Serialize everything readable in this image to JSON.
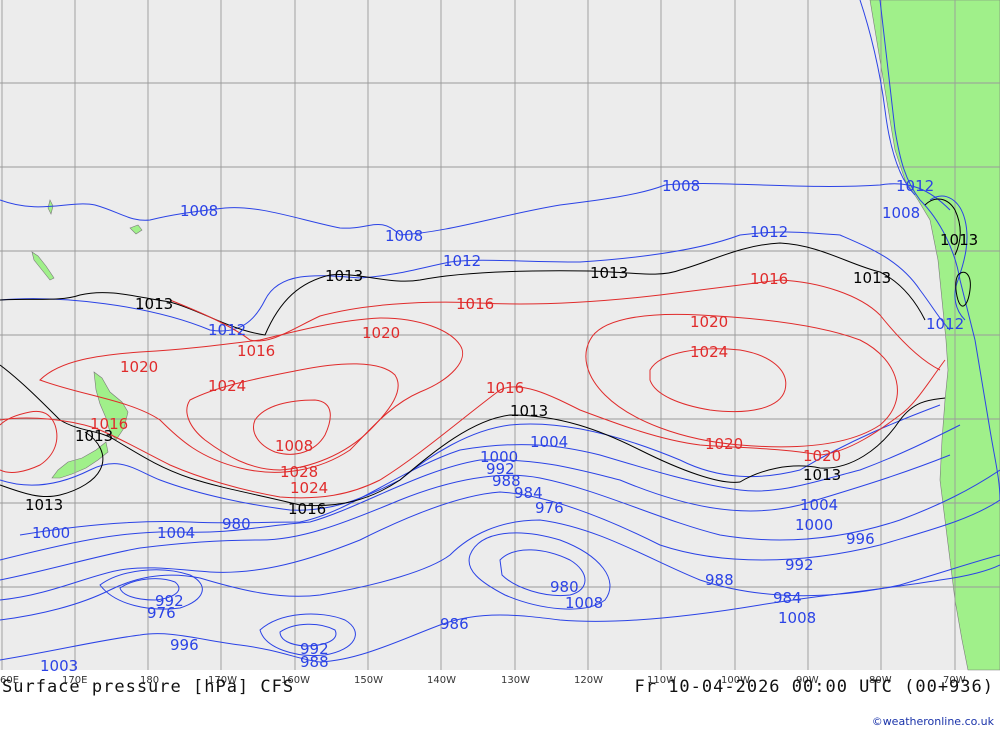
{
  "title_left": "Surface pressure [hPa] CFS",
  "title_right": "Fr 10-04-2026 00:00 UTC (00+936)",
  "credit": "©weatheronline.co.uk",
  "colors": {
    "ocean": "#ececec",
    "land": "#a0f08a",
    "grid": "#9a9a9a",
    "low": "#2b43e6",
    "high": "#e02b2b",
    "normal": "#000000"
  },
  "longitude_labels": [
    "60E",
    "170E",
    "180",
    "170W",
    "160W",
    "150W",
    "140W",
    "130W",
    "120W",
    "110W",
    "100W",
    "90W",
    "80W",
    "70W"
  ],
  "isobar_labels": [
    "1008",
    "1008",
    "1008",
    "1008",
    "1012",
    "1012",
    "1012",
    "1012",
    "1012",
    "1013",
    "1013",
    "1013",
    "1013",
    "1013",
    "1013",
    "1013",
    "1013",
    "1013",
    "1016",
    "1016",
    "1016",
    "1016",
    "1016",
    "1016",
    "1020",
    "1020",
    "1020",
    "1020",
    "1020",
    "1024",
    "1024",
    "1024",
    "1028",
    "1008",
    "1004",
    "1000",
    "992",
    "988",
    "984",
    "976",
    "980",
    "1008",
    "1004",
    "1000",
    "996",
    "992",
    "988",
    "984",
    "1008",
    "1000",
    "1004",
    "980",
    "976",
    "992",
    "996",
    "988",
    "992",
    "986",
    "1003"
  ]
}
